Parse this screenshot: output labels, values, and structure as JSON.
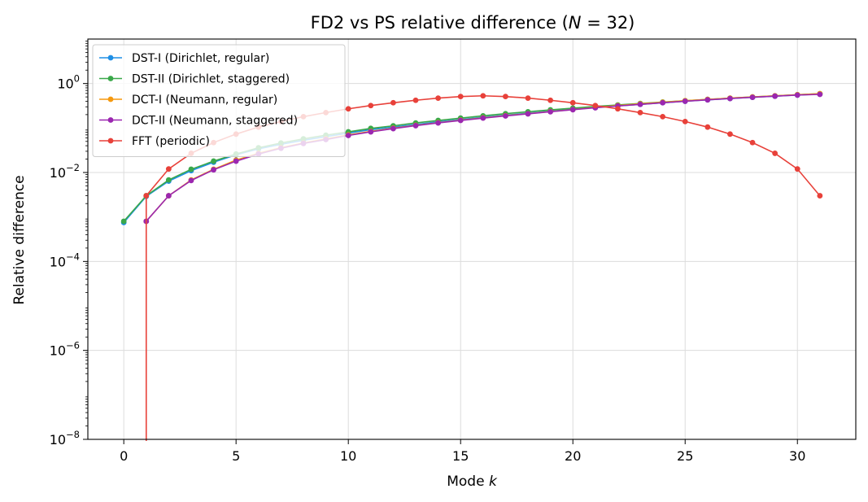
{
  "chart_data": {
    "type": "line",
    "title": "FD2 vs PS relative difference (N = 32)",
    "xlabel": "Mode k",
    "ylabel": "Relative difference",
    "yscale": "log",
    "xlim": [
      -1.6,
      32.6
    ],
    "ylim": [
      1e-08,
      10
    ],
    "grid": true,
    "legend_position": "top-left",
    "x_ticks": [
      0,
      5,
      10,
      15,
      20,
      25,
      30
    ],
    "x_tick_labels": [
      "0",
      "5",
      "10",
      "15",
      "20",
      "25",
      "30"
    ],
    "y_ticks": [
      1e-08,
      1e-06,
      0.0001,
      0.01,
      1
    ],
    "y_tick_labels": [
      {
        "base": "10",
        "exp": "−8"
      },
      {
        "base": "10",
        "exp": "−6"
      },
      {
        "base": "10",
        "exp": "−4"
      },
      {
        "base": "10",
        "exp": "−2"
      },
      {
        "base": "10",
        "exp": "0"
      }
    ],
    "series": [
      {
        "name": "DST-I (Dirichlet, regular)",
        "color": "#1f8fe5",
        "x": [
          0,
          1,
          2,
          3,
          4,
          5,
          6,
          7,
          8,
          9,
          10,
          11,
          12,
          13,
          14,
          15,
          16,
          17,
          18,
          19,
          20,
          21,
          22,
          23,
          24,
          25,
          26,
          27,
          28,
          29,
          30,
          31
        ],
        "y": [
          0.00075,
          0.0029,
          0.0064,
          0.011,
          0.017,
          0.025,
          0.034,
          0.043,
          0.053,
          0.064,
          0.077,
          0.092,
          0.105,
          0.12,
          0.138,
          0.155,
          0.175,
          0.195,
          0.215,
          0.24,
          0.265,
          0.29,
          0.315,
          0.34,
          0.37,
          0.4,
          0.43,
          0.46,
          0.49,
          0.52,
          0.55,
          0.58
        ]
      },
      {
        "name": "DST-II (Dirichlet, staggered)",
        "color": "#3aa84a",
        "x": [
          0,
          1,
          2,
          3,
          4,
          5,
          6,
          7,
          8,
          9,
          10,
          11,
          12,
          13,
          14,
          15,
          16,
          17,
          18,
          19,
          20,
          21,
          22,
          23,
          24,
          25,
          26,
          27,
          28,
          29,
          30,
          31
        ],
        "y": [
          0.0008,
          0.003,
          0.0068,
          0.0118,
          0.018,
          0.026,
          0.036,
          0.046,
          0.057,
          0.069,
          0.082,
          0.098,
          0.112,
          0.13,
          0.148,
          0.167,
          0.188,
          0.21,
          0.232,
          0.256,
          0.28,
          0.305,
          0.33,
          0.356,
          0.383,
          0.41,
          0.44,
          0.47,
          0.5,
          0.53,
          0.56,
          0.59
        ]
      },
      {
        "name": "DCT-I (Neumann, regular)",
        "color": "#f5990f",
        "x": [
          1,
          2,
          3,
          4,
          5,
          6,
          7,
          8,
          9,
          10,
          11,
          12,
          13,
          14,
          15,
          16,
          17,
          18,
          19,
          20,
          21,
          22,
          23,
          24,
          25,
          26,
          27,
          28,
          29,
          30,
          31
        ],
        "y": [
          0.0008,
          0.003,
          0.0068,
          0.0118,
          0.019,
          0.027,
          0.036,
          0.046,
          0.057,
          0.07,
          0.084,
          0.099,
          0.115,
          0.132,
          0.15,
          0.17,
          0.19,
          0.21,
          0.235,
          0.26,
          0.29,
          0.32,
          0.35,
          0.38,
          0.41,
          0.44,
          0.47,
          0.5,
          0.53,
          0.56,
          0.59
        ]
      },
      {
        "name": "DCT-II (Neumann, staggered)",
        "color": "#9b27b0",
        "x": [
          1,
          2,
          3,
          4,
          5,
          6,
          7,
          8,
          9,
          10,
          11,
          12,
          13,
          14,
          15,
          16,
          17,
          18,
          19,
          20,
          21,
          22,
          23,
          24,
          25,
          26,
          27,
          28,
          29,
          30,
          31
        ],
        "y": [
          0.0008,
          0.003,
          0.0066,
          0.0115,
          0.018,
          0.026,
          0.035,
          0.045,
          0.055,
          0.068,
          0.082,
          0.097,
          0.113,
          0.13,
          0.148,
          0.167,
          0.187,
          0.208,
          0.232,
          0.258,
          0.285,
          0.313,
          0.34,
          0.37,
          0.4,
          0.43,
          0.46,
          0.49,
          0.52,
          0.55,
          0.57
        ]
      },
      {
        "name": "FFT (periodic)",
        "color": "#e8413a",
        "x": [
          1,
          2,
          3,
          4,
          5,
          6,
          7,
          8,
          9,
          10,
          11,
          12,
          13,
          14,
          15,
          16,
          17,
          18,
          19,
          20,
          21,
          22,
          23,
          24,
          25,
          26,
          27,
          28,
          29,
          30,
          31
        ],
        "y": [
          0.003,
          0.012,
          0.027,
          0.047,
          0.073,
          0.105,
          0.14,
          0.18,
          0.222,
          0.27,
          0.32,
          0.37,
          0.42,
          0.47,
          0.51,
          0.53,
          0.51,
          0.47,
          0.42,
          0.37,
          0.32,
          0.27,
          0.222,
          0.18,
          0.14,
          0.105,
          0.073,
          0.047,
          0.027,
          0.012,
          0.003
        ],
        "drop_to_axis_at_x": 1
      }
    ]
  }
}
